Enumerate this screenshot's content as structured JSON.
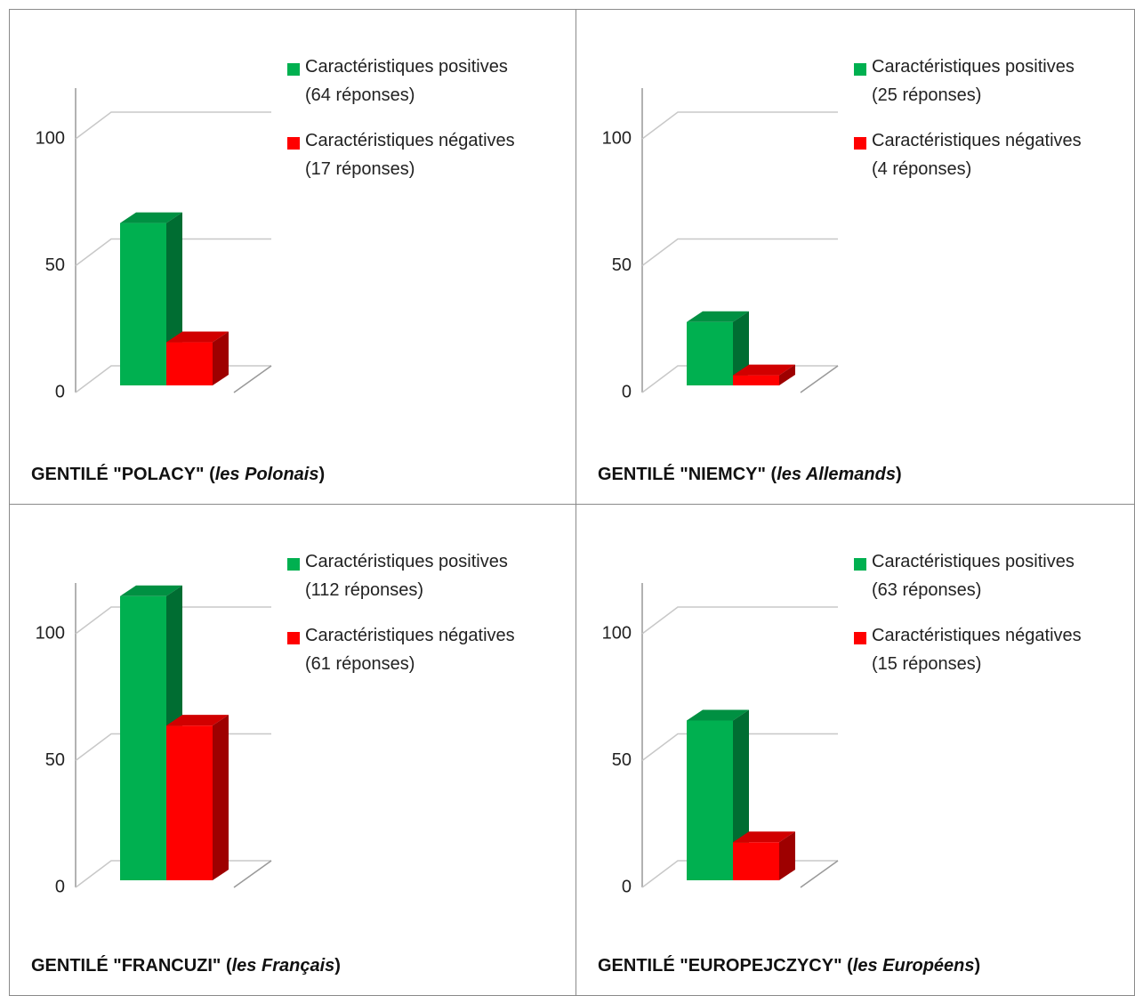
{
  "chart_data": [
    {
      "type": "bar",
      "title": [
        "GENTILÉ \"POLACY\" (",
        "les Polonais",
        ")"
      ],
      "series": [
        {
          "name": "Caractéristiques positives\n(64 réponses)",
          "color": "#00b050",
          "values": [
            64
          ]
        },
        {
          "name": "Caractéristiques négatives\n(17 réponses)",
          "color": "#ff0000",
          "values": [
            17
          ]
        }
      ],
      "ylim": [
        0,
        120
      ],
      "yticks": [
        0,
        50,
        100
      ],
      "grid": true
    },
    {
      "type": "bar",
      "title": [
        "GENTILÉ \"NIEMCY\" (",
        "les Allemands",
        ")"
      ],
      "series": [
        {
          "name": "Caractéristiques positives\n(25 réponses)",
          "color": "#00b050",
          "values": [
            25
          ]
        },
        {
          "name": "Caractéristiques négatives\n(4 réponses)",
          "color": "#ff0000",
          "values": [
            4
          ]
        }
      ],
      "ylim": [
        0,
        120
      ],
      "yticks": [
        0,
        50,
        100
      ],
      "grid": true
    },
    {
      "type": "bar",
      "title": [
        "GENTILÉ \"FRANCUZI\" (",
        "les Français",
        ")"
      ],
      "series": [
        {
          "name": "Caractéristiques positives\n(112 réponses)",
          "color": "#00b050",
          "values": [
            112
          ]
        },
        {
          "name": "Caractéristiques négatives\n(61 réponses)",
          "color": "#ff0000",
          "values": [
            61
          ]
        }
      ],
      "ylim": [
        0,
        120
      ],
      "yticks": [
        0,
        50,
        100
      ],
      "grid": true
    },
    {
      "type": "bar",
      "title": [
        "GENTILÉ \"EUROPEJCZYCY\" (",
        "les Européens",
        ")"
      ],
      "series": [
        {
          "name": "Caractéristiques positives\n(63 réponses)",
          "color": "#00b050",
          "values": [
            63
          ]
        },
        {
          "name": "Caractéristiques négatives\n(15 réponses)",
          "color": "#ff0000",
          "values": [
            15
          ]
        }
      ],
      "ylim": [
        0,
        120
      ],
      "yticks": [
        0,
        50,
        100
      ],
      "grid": true
    }
  ]
}
